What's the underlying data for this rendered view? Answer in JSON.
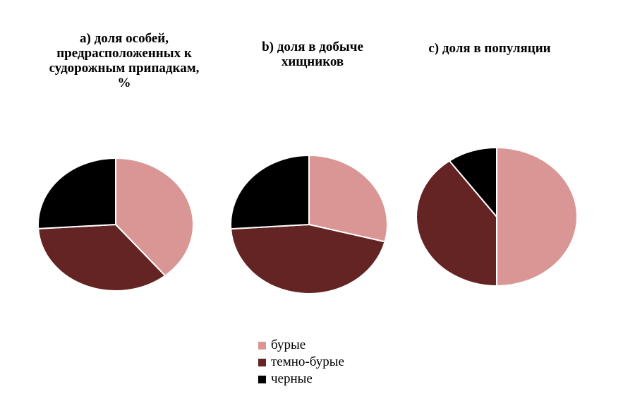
{
  "figure": {
    "background": "#FFFFFF",
    "slice_border": "#FFFFFF"
  },
  "palette": {
    "pink": "#D99694",
    "dark_brown": "#632423",
    "black": "#000000"
  },
  "legend": {
    "items": [
      {
        "label": "бурые",
        "color": "#D99694"
      },
      {
        "label": "темно-бурые",
        "color": "#632423"
      },
      {
        "label": "черные",
        "color": "#000000"
      }
    ]
  },
  "chart_data": [
    {
      "type": "pie",
      "id": "a",
      "title": "a) доля особей,\nпредрасположенных к\nсудорожным припадкам,\n%",
      "categories": [
        "бурые",
        "темно-бурые",
        "черные"
      ],
      "values": [
        39,
        35,
        26
      ],
      "unit": "%",
      "colors": [
        "#D99694",
        "#632423",
        "#000000"
      ],
      "start_angle_deg": 0,
      "direction": "clockwise",
      "legend_position": "bottom-center-shared"
    },
    {
      "type": "pie",
      "id": "b",
      "title": "b) доля в добыче\nхищников",
      "categories": [
        "бурые",
        "темно-бурые",
        "черные"
      ],
      "values": [
        29,
        45,
        26
      ],
      "unit": "%",
      "colors": [
        "#D99694",
        "#632423",
        "#000000"
      ],
      "start_angle_deg": 0,
      "direction": "clockwise",
      "legend_position": "bottom-center-shared"
    },
    {
      "type": "pie",
      "id": "c",
      "title": "c) доля в популяции",
      "categories": [
        "бурые",
        "темно-бурые",
        "черные"
      ],
      "values": [
        50,
        40,
        10
      ],
      "unit": "%",
      "colors": [
        "#D99694",
        "#632423",
        "#000000"
      ],
      "start_angle_deg": 0,
      "direction": "clockwise",
      "legend_position": "bottom-center-shared"
    }
  ]
}
